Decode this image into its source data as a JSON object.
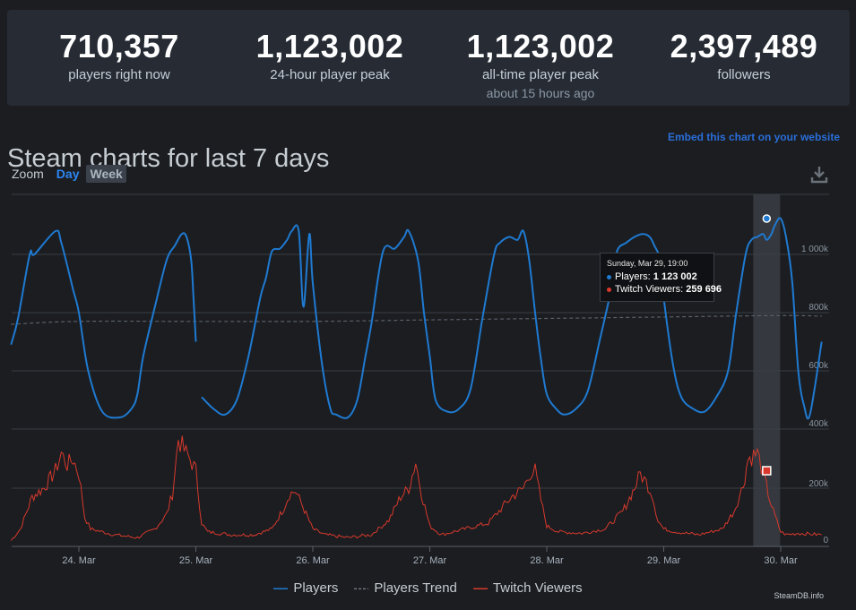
{
  "stats": [
    {
      "value": "710,357",
      "label": "players right now",
      "sub": ""
    },
    {
      "value": "1,123,002",
      "label": "24-hour player peak",
      "sub": ""
    },
    {
      "value": "1,123,002",
      "label": "all-time player peak",
      "sub": "about 15 hours ago"
    },
    {
      "value": "2,397,489",
      "label": "followers",
      "sub": ""
    }
  ],
  "heading": "Steam charts for last 7 days",
  "embed_link": "Embed this chart on your website",
  "zoom": {
    "label": "Zoom",
    "day": "Day",
    "week": "Week",
    "selected": "Week"
  },
  "download_icon": "download-icon",
  "tooltip": {
    "date": "Sunday, Mar 29, 19:00",
    "players_label": "Players: ",
    "players_value": "1 123 002",
    "twitch_label": "Twitch Viewers: ",
    "twitch_value": "259 696"
  },
  "legend": [
    "Players",
    "Players Trend",
    "Twitch Viewers"
  ],
  "credit": "SteamDB.info",
  "colors": {
    "players": "#1f7ad1",
    "trend": "#5a5f66",
    "twitch": "#d8392c",
    "highlight": "#3a3d43"
  },
  "chart_data": {
    "type": "line",
    "x_ticks": [
      "24. Mar",
      "25. Mar",
      "26. Mar",
      "27. Mar",
      "28. Mar",
      "29. Mar",
      "30. Mar"
    ],
    "y_ticks_players": [
      "400k",
      "600k",
      "800k",
      "1 000k"
    ],
    "y_ticks_twitch": [
      "0",
      "200k"
    ],
    "grid": true,
    "legend_position": "bottom",
    "highlight": {
      "time": "Sunday, Mar 29, 19:00"
    },
    "series": [
      {
        "name": "Players",
        "time_days_from_mar24": [
          -0.58,
          -0.52,
          -0.42,
          -0.38,
          -0.2,
          -0.15,
          -0.05,
          0,
          0.08,
          0.2,
          0.35,
          0.45,
          0.5,
          0.55,
          0.65,
          0.75,
          0.82,
          0.88,
          0.92,
          0.96,
          0.98,
          1.0,
          1.05,
          1.15,
          1.25,
          1.35,
          1.45,
          1.55,
          1.6,
          1.65,
          1.72,
          1.78,
          1.82,
          1.88,
          1.92,
          1.97,
          2.0,
          2.08,
          2.15,
          2.2,
          2.3,
          2.38,
          2.45,
          2.5,
          2.6,
          2.7,
          2.78,
          2.82,
          2.9,
          2.95,
          3.0,
          3.05,
          3.15,
          3.25,
          3.35,
          3.45,
          3.55,
          3.6,
          3.68,
          3.75,
          3.8,
          3.85,
          3.9,
          3.95,
          4.0,
          4.08,
          4.15,
          4.25,
          4.35,
          4.45,
          4.55,
          4.6,
          4.68,
          4.75,
          4.82,
          4.88,
          4.92,
          4.97,
          5.0,
          5.08,
          5.15,
          5.25,
          5.35,
          5.45,
          5.55,
          5.62,
          5.7,
          5.75,
          5.8,
          5.85,
          5.88,
          5.92,
          5.95,
          6.0,
          6.05,
          6.1,
          6.15,
          6.2,
          6.25,
          6.35
        ],
        "values": [
          690,
          780,
          1000,
          1000,
          1080,
          1040,
          880,
          800,
          600,
          460,
          440,
          470,
          520,
          650,
          820,
          980,
          1030,
          1070,
          1060,
          980,
          850,
          700,
          510,
          470,
          450,
          500,
          650,
          850,
          920,
          1010,
          1020,
          1050,
          1080,
          1080,
          820,
          1070,
          900,
          620,
          470,
          450,
          440,
          500,
          650,
          760,
          1010,
          1020,
          1060,
          1080,
          980,
          800,
          650,
          500,
          460,
          470,
          540,
          780,
          1000,
          1040,
          1060,
          1050,
          1080,
          980,
          800,
          640,
          520,
          470,
          450,
          470,
          530,
          700,
          880,
          1010,
          1040,
          1060,
          1070,
          1060,
          1030,
          980,
          850,
          620,
          510,
          470,
          460,
          510,
          600,
          800,
          1000,
          1050,
          1060,
          1070,
          1050,
          1070,
          1100,
          1123,
          1050,
          900,
          600,
          480,
          450,
          700
        ],
        "gap_after_index": 21
      },
      {
        "name": "Players Trend",
        "time_days_from_mar24": [
          -0.58,
          0,
          1,
          2,
          3,
          4,
          5,
          6,
          6.35
        ],
        "values": [
          760,
          770,
          770,
          770,
          775,
          780,
          785,
          790,
          788
        ]
      },
      {
        "name": "Twitch Viewers",
        "time_days_from_mar24": [
          -0.58,
          -0.5,
          -0.4,
          -0.3,
          -0.2,
          -0.15,
          -0.1,
          -0.05,
          0,
          0.05,
          0.1,
          0.3,
          0.5,
          0.65,
          0.75,
          0.8,
          0.85,
          0.9,
          0.95,
          1.0,
          1.05,
          1.1,
          1.3,
          1.5,
          1.65,
          1.75,
          1.8,
          1.85,
          1.9,
          2.0,
          2.1,
          2.3,
          2.5,
          2.65,
          2.75,
          2.82,
          2.88,
          2.93,
          3.0,
          3.1,
          3.3,
          3.5,
          3.7,
          3.8,
          3.85,
          3.9,
          3.95,
          4.0,
          4.1,
          4.3,
          4.5,
          4.65,
          4.75,
          4.8,
          4.85,
          4.9,
          4.95,
          5.0,
          5.1,
          5.3,
          5.5,
          5.6,
          5.68,
          5.72,
          5.8,
          5.85,
          5.92,
          6.0,
          6.05,
          6.15,
          6.35
        ],
        "values": [
          20,
          60,
          170,
          200,
          260,
          320,
          280,
          300,
          250,
          100,
          60,
          40,
          30,
          60,
          110,
          180,
          370,
          330,
          300,
          260,
          80,
          50,
          40,
          40,
          60,
          130,
          180,
          190,
          150,
          60,
          40,
          30,
          40,
          90,
          170,
          200,
          290,
          180,
          70,
          40,
          60,
          80,
          170,
          200,
          250,
          260,
          160,
          70,
          50,
          45,
          60,
          120,
          200,
          250,
          220,
          180,
          90,
          60,
          50,
          40,
          60,
          120,
          210,
          300,
          320,
          250,
          140,
          50,
          40,
          45,
          40
        ]
      }
    ]
  }
}
